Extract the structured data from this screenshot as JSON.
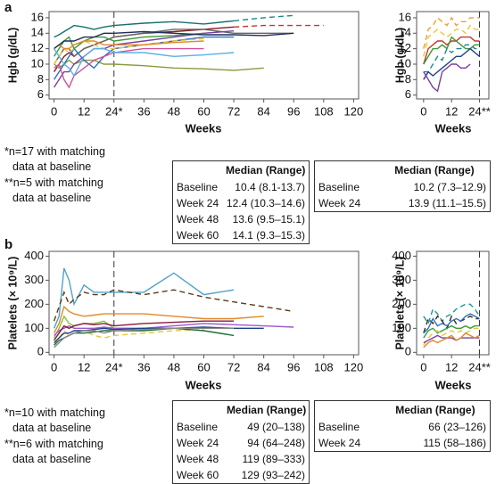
{
  "panel_labels": [
    "a",
    "b"
  ],
  "chart_data": [
    {
      "type": "line",
      "y_label": "Hgb (g/dL)",
      "x_label": "Weeks",
      "x": [
        0,
        2,
        4,
        6,
        8,
        12,
        16,
        20,
        24,
        36,
        48,
        60,
        72,
        84,
        96,
        108
      ],
      "xlim": [
        -2,
        122
      ],
      "ylim": [
        5.5,
        16.8
      ],
      "xticks": [
        0,
        12,
        {
          "value": 24,
          "label": "24*"
        },
        36,
        48,
        60,
        72,
        84,
        96,
        108,
        120
      ],
      "yticks": [
        6,
        8,
        10,
        12,
        14,
        16
      ],
      "vline": 24,
      "series": [
        {
          "color": "#1a6e6e",
          "dash": false,
          "values": [
            13.5,
            13.8,
            14.2,
            14.6,
            15,
            14.8,
            14.5,
            14.8,
            15,
            15.3,
            15.5,
            15.2,
            15.6,
            null,
            null,
            null
          ]
        },
        {
          "color": "#1a8a8a",
          "dash": true,
          "values": [
            null,
            null,
            null,
            null,
            null,
            null,
            null,
            null,
            null,
            null,
            null,
            null,
            15.6,
            16,
            16.3,
            null
          ]
        },
        {
          "color": "#c0392b",
          "dash": true,
          "values": [
            null,
            null,
            null,
            null,
            null,
            null,
            null,
            null,
            null,
            null,
            null,
            null,
            14.8,
            15,
            15,
            15
          ]
        },
        {
          "color": "#8b1a1a",
          "dash": false,
          "values": [
            9,
            10,
            11,
            11.5,
            11,
            12,
            12.5,
            13,
            13.5,
            14,
            14.2,
            14.5,
            14.8,
            null,
            null,
            null
          ]
        },
        {
          "color": "#666666",
          "dash": false,
          "values": [
            10,
            11,
            12,
            12,
            11,
            12,
            12.5,
            13,
            13.5,
            14,
            14.5,
            14.5,
            14,
            14,
            14,
            null
          ]
        },
        {
          "color": "#8a9a3a",
          "dash": false,
          "values": [
            10,
            9.5,
            10,
            10.5,
            10,
            10.5,
            10.5,
            10,
            10,
            9.8,
            9.5,
            9.4,
            9.2,
            9.5,
            null,
            null
          ]
        },
        {
          "color": "#2e6fc0",
          "dash": false,
          "values": [
            8,
            9,
            10,
            11,
            12,
            10.5,
            9.5,
            11,
            12,
            12.5,
            13,
            13.5,
            13.5,
            null,
            null,
            null
          ]
        },
        {
          "color": "#e8c832",
          "dash": true,
          "values": [
            10,
            11,
            12,
            11.5,
            12,
            13,
            12.5,
            12,
            12,
            12.5,
            13,
            13.3,
            null,
            null,
            null,
            null
          ]
        },
        {
          "color": "#7b3fa0",
          "dash": false,
          "values": [
            7,
            8,
            9,
            9,
            10,
            11,
            12,
            12,
            12.5,
            13,
            13.5,
            14,
            14.3,
            null,
            null,
            null
          ]
        },
        {
          "color": "#3a9a3a",
          "dash": false,
          "values": [
            11,
            12,
            13,
            13.5,
            12,
            13,
            13.5,
            13.5,
            13,
            13.5,
            13.7,
            14,
            null,
            null,
            null,
            null
          ]
        },
        {
          "color": "#e08a2a",
          "dash": false,
          "values": [
            12,
            12.5,
            12,
            12,
            12.5,
            13,
            13,
            12.5,
            12.5,
            12.5,
            12.8,
            13,
            null,
            null,
            null,
            null
          ]
        },
        {
          "color": "#d0509a",
          "dash": false,
          "values": [
            9.5,
            10,
            8,
            7,
            8.5,
            9.5,
            10.5,
            11,
            11.5,
            12,
            12,
            12,
            null,
            null,
            null,
            null
          ]
        },
        {
          "color": "#1f2f5a",
          "dash": false,
          "values": [
            12,
            12.5,
            13,
            13,
            13,
            13.5,
            13.5,
            14,
            14,
            14.2,
            14,
            13.8,
            13.8,
            13.7,
            14,
            null
          ]
        },
        {
          "color": "#5ab0e0",
          "dash": false,
          "values": [
            12,
            11,
            10,
            9.5,
            8.5,
            11,
            12,
            12,
            11.5,
            11.5,
            11,
            11.2,
            11.5,
            null,
            null,
            null
          ]
        }
      ]
    },
    {
      "type": "line",
      "y_label": "Hgb (g/dL)",
      "x_label": "Weeks",
      "x": [
        0,
        2,
        4,
        6,
        8,
        10,
        12,
        14,
        16,
        18,
        20,
        22,
        24
      ],
      "xlim": [
        -3,
        28
      ],
      "ylim": [
        5.5,
        16.8
      ],
      "xticks": [
        0,
        12,
        {
          "value": 24,
          "label": "24**"
        }
      ],
      "yticks": [
        6,
        8,
        10,
        12,
        14,
        16
      ],
      "vline": 24,
      "series": [
        {
          "color": "#f0a030",
          "dash": true,
          "values": [
            12,
            14.5,
            15,
            16,
            15.5,
            15,
            16,
            15,
            15.5,
            15.5,
            16,
            16,
            16
          ]
        },
        {
          "color": "#e8c832",
          "dash": true,
          "values": [
            11,
            13.5,
            14,
            14.5,
            14,
            13.5,
            14,
            14.5,
            14.5,
            14,
            15,
            14.5,
            14.5
          ]
        },
        {
          "color": "#c0392b",
          "dash": false,
          "values": [
            10,
            12,
            12.5,
            13,
            13,
            12.5,
            13,
            13,
            13.5,
            13.5,
            13.5,
            13,
            13
          ]
        },
        {
          "color": "#3a9a3a",
          "dash": false,
          "values": [
            10,
            11,
            12,
            12,
            12.5,
            12,
            13.5,
            13,
            12.5,
            12,
            12,
            12.5,
            12.5
          ]
        },
        {
          "color": "#1a8a8a",
          "dash": true,
          "values": [
            9,
            9,
            10,
            11,
            10.5,
            12,
            11.5,
            12,
            12,
            12.5,
            12.5,
            12,
            12
          ]
        },
        {
          "color": "#1f3f8a",
          "dash": false,
          "values": [
            8,
            9,
            8.5,
            9,
            9.5,
            10,
            10.5,
            11,
            11,
            11.5,
            12,
            11.5,
            11
          ]
        },
        {
          "color": "#7b3fa0",
          "dash": false,
          "values": [
            9,
            8,
            7,
            6.5,
            9,
            9.5,
            10,
            10,
            9.5,
            9.5,
            10,
            null,
            null
          ]
        }
      ]
    },
    {
      "type": "line",
      "y_label": "Platelets (× 10⁹/L)",
      "x_label": "Weeks",
      "x": [
        0,
        2,
        4,
        6,
        8,
        12,
        16,
        20,
        24,
        36,
        48,
        60,
        72,
        84,
        96,
        108
      ],
      "xlim": [
        -2,
        122
      ],
      "ylim": [
        -10,
        420
      ],
      "xticks": [
        0,
        12,
        {
          "value": 24,
          "label": "24*"
        },
        36,
        48,
        60,
        72,
        84,
        96,
        108,
        120
      ],
      "yticks": [
        0,
        100,
        200,
        300,
        400
      ],
      "vline": 24,
      "series": [
        {
          "color": "#4fa3c7",
          "dash": false,
          "values": [
            100,
            150,
            350,
            300,
            200,
            280,
            250,
            250,
            250,
            250,
            330,
            240,
            260,
            null,
            null,
            null
          ]
        },
        {
          "color": "#5a3a1a",
          "dash": true,
          "values": [
            130,
            190,
            250,
            200,
            220,
            250,
            240,
            240,
            260,
            240,
            260,
            230,
            210,
            190,
            170,
            null
          ]
        },
        {
          "color": "#e08a2a",
          "dash": false,
          "values": [
            80,
            120,
            190,
            170,
            160,
            150,
            155,
            160,
            160,
            160,
            150,
            140,
            140,
            150,
            null,
            null
          ]
        },
        {
          "color": "#8ac040",
          "dash": false,
          "values": [
            60,
            100,
            150,
            120,
            110,
            120,
            120,
            130,
            100,
            100,
            100,
            100,
            null,
            null,
            null,
            null
          ]
        },
        {
          "color": "#9a5ad0",
          "dash": false,
          "values": [
            70,
            90,
            100,
            110,
            100,
            100,
            100,
            105,
            100,
            100,
            110,
            120,
            115,
            110,
            105,
            null
          ]
        },
        {
          "color": "#8b1a3a",
          "dash": false,
          "values": [
            50,
            80,
            110,
            100,
            110,
            120,
            115,
            120,
            110,
            120,
            125,
            130,
            130,
            null,
            null,
            null
          ]
        },
        {
          "color": "#e8c832",
          "dash": true,
          "values": [
            30,
            60,
            90,
            70,
            80,
            90,
            70,
            60,
            70,
            80,
            90,
            95,
            null,
            null,
            null,
            null
          ]
        },
        {
          "color": "#1f3f8a",
          "dash": false,
          "values": [
            40,
            60,
            80,
            80,
            90,
            90,
            95,
            100,
            95,
            100,
            100,
            105,
            100,
            100,
            null,
            null
          ]
        },
        {
          "color": "#1a6e3a",
          "dash": false,
          "values": [
            30,
            50,
            60,
            70,
            80,
            80,
            85,
            90,
            90,
            90,
            100,
            90,
            70,
            null,
            null,
            null
          ]
        },
        {
          "color": "#888888",
          "dash": false,
          "values": [
            20,
            40,
            60,
            70,
            80,
            90,
            90,
            80,
            90,
            95,
            100,
            100,
            100,
            null,
            null,
            null
          ]
        }
      ]
    },
    {
      "type": "line",
      "y_label": "Platelets (× 10⁹/L)",
      "x_label": "Weeks",
      "x": [
        0,
        2,
        4,
        6,
        8,
        10,
        12,
        14,
        16,
        18,
        20,
        22,
        24
      ],
      "xlim": [
        -3,
        28
      ],
      "ylim": [
        -10,
        420
      ],
      "xticks": [
        0,
        12,
        {
          "value": 24,
          "label": "24**"
        }
      ],
      "yticks": [
        0,
        100,
        200,
        300,
        400
      ],
      "vline": 24,
      "series": [
        {
          "color": "#1a9a9a",
          "dash": true,
          "values": [
            150,
            120,
            180,
            160,
            130,
            150,
            160,
            180,
            190,
            200,
            200,
            180,
            150
          ]
        },
        {
          "color": "#3a2a1a",
          "dash": true,
          "values": [
            80,
            140,
            120,
            150,
            130,
            100,
            150,
            120,
            130,
            140,
            150,
            140,
            140
          ]
        },
        {
          "color": "#2e6fc0",
          "dash": false,
          "values": [
            80,
            100,
            140,
            110,
            120,
            110,
            130,
            140,
            130,
            150,
            160,
            150,
            140
          ]
        },
        {
          "color": "#3a9a3a",
          "dash": false,
          "values": [
            60,
            90,
            100,
            80,
            90,
            100,
            110,
            100,
            100,
            110,
            100,
            110,
            110
          ]
        },
        {
          "color": "#e8c832",
          "dash": true,
          "values": [
            30,
            60,
            80,
            90,
            70,
            80,
            90,
            80,
            90,
            80,
            90,
            100,
            100
          ]
        },
        {
          "color": "#7b3fa0",
          "dash": false,
          "values": [
            40,
            50,
            60,
            70,
            60,
            60,
            60,
            50,
            60,
            60,
            60,
            60,
            60
          ]
        },
        {
          "color": "#e08a2a",
          "dash": false,
          "values": [
            20,
            40,
            50,
            40,
            50,
            60,
            70,
            50,
            60,
            80,
            70,
            60,
            70
          ]
        }
      ]
    }
  ],
  "notes": [
    [
      "*n=17 with matching",
      "data at baseline",
      "**n=5 with matching",
      "data at baseline"
    ],
    [
      "*n=10 with matching",
      "data at baseline",
      "**n=6 with matching",
      "data at baseline"
    ]
  ],
  "tables": [
    {
      "header": "Median (Range)",
      "rows": [
        [
          "Baseline",
          "10.4 (8.1-13.7)"
        ],
        [
          "Week 24",
          "12.4 (10.3–14.6)"
        ],
        [
          "Week 48",
          "13.6 (9.5–15.1)"
        ],
        [
          "Week 60",
          "14.1 (9.3–15.3)"
        ]
      ]
    },
    {
      "header": "Median (Range)",
      "rows": [
        [
          "Baseline",
          "10.2 (7.3–12.9)"
        ],
        [
          "Week 24",
          "13.9 (11.1–15.5)"
        ]
      ]
    },
    {
      "header": "Median (Range)",
      "rows": [
        [
          "Baseline",
          "49 (20–138)"
        ],
        [
          "Week 24",
          "94 (64–248)"
        ],
        [
          "Week 48",
          "119 (89–333)"
        ],
        [
          "Week 60",
          "129 (93–242)"
        ]
      ]
    },
    {
      "header": "Median (Range)",
      "rows": [
        [
          "Baseline",
          "66 (23–126)"
        ],
        [
          "Week 24",
          "115 (58–186)"
        ]
      ]
    }
  ]
}
